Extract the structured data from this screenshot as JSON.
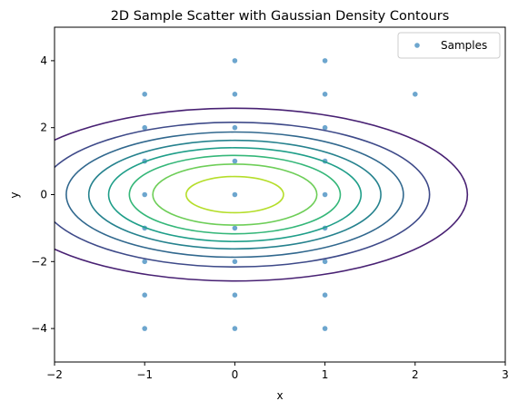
{
  "chart_data": {
    "type": "scatter",
    "title": "2D Sample Scatter with Gaussian Density Contours",
    "xlabel": "x",
    "ylabel": "y",
    "xlim": [
      -2,
      3
    ],
    "ylim": [
      -5,
      5
    ],
    "xticks": [
      -2,
      -1,
      0,
      1,
      2,
      3
    ],
    "yticks": [
      -4,
      -2,
      0,
      2,
      4
    ],
    "xtick_labels": [
      "−2",
      "−1",
      "0",
      "1",
      "2",
      "3"
    ],
    "ytick_labels": [
      "−4",
      "−2",
      "0",
      "2",
      "4"
    ],
    "grid": false,
    "legend": {
      "position": "top-right",
      "entries": [
        "Samples"
      ]
    },
    "series": [
      {
        "name": "Samples",
        "kind": "scatter",
        "color": "#1f77b4",
        "points": [
          [
            -1,
            3
          ],
          [
            -1,
            2
          ],
          [
            -1,
            1
          ],
          [
            -1,
            0
          ],
          [
            -1,
            -1
          ],
          [
            -1,
            -2
          ],
          [
            -1,
            -3
          ],
          [
            -1,
            -4
          ],
          [
            0,
            4
          ],
          [
            0,
            3
          ],
          [
            0,
            2
          ],
          [
            0,
            1
          ],
          [
            0,
            0
          ],
          [
            0,
            -1
          ],
          [
            0,
            -2
          ],
          [
            0,
            -3
          ],
          [
            0,
            -4
          ],
          [
            1,
            4
          ],
          [
            1,
            3
          ],
          [
            1,
            2
          ],
          [
            1,
            1
          ],
          [
            1,
            0
          ],
          [
            1,
            -1
          ],
          [
            1,
            -2
          ],
          [
            1,
            -3
          ],
          [
            1,
            -4
          ],
          [
            2,
            3
          ]
        ]
      }
    ],
    "contours": {
      "center": [
        0,
        0
      ],
      "levels": [
        {
          "rx": 2.58,
          "ry": 2.58,
          "color": "#482173"
        },
        {
          "rx": 2.16,
          "ry": 2.16,
          "color": "#3e4a89"
        },
        {
          "rx": 1.87,
          "ry": 1.87,
          "color": "#31688e"
        },
        {
          "rx": 1.62,
          "ry": 1.62,
          "color": "#26828e"
        },
        {
          "rx": 1.4,
          "ry": 1.4,
          "color": "#1f9e89"
        },
        {
          "rx": 1.17,
          "ry": 1.17,
          "color": "#35b779"
        },
        {
          "rx": 0.91,
          "ry": 0.91,
          "color": "#6ece58"
        },
        {
          "rx": 0.54,
          "ry": 0.54,
          "color": "#b5de2b"
        }
      ]
    }
  }
}
